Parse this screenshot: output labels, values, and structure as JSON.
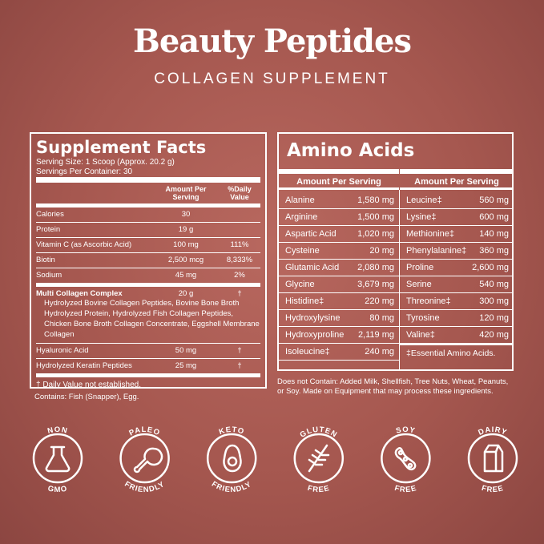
{
  "header": {
    "title": "Beauty Peptides",
    "subtitle": "COLLAGEN SUPPLEMENT"
  },
  "supplement_facts": {
    "title": "Supplement Facts",
    "serving_size": "Serving Size: 1 Scoop (Approx. 20.2 g)",
    "servings": "Servings Per Container: 30",
    "amount_header": "Amount Per Serving",
    "dv_header": "%Daily Value",
    "rows": [
      {
        "name": "Calories",
        "amount": "30"
      },
      {
        "name": "Protein",
        "amount": "19 g"
      },
      {
        "name": "Vitamin C (as Ascorbic Acid)",
        "amount": "100 mg",
        "dv": "111%"
      },
      {
        "name": "Biotin",
        "amount": "2,500 mcg",
        "dv": "8,333%"
      },
      {
        "name": "Sodium",
        "amount": "45 mg",
        "dv": "2%"
      },
      {
        "name": "Multi Collagen Complex",
        "amount": "20 g",
        "dv": "†",
        "description": "Hydrolyzed Bovine Collagen Peptides, Bovine Bone Broth Hydrolyzed Protein, Hydrolyzed Fish Collagen Peptides, Chicken Bone Broth Collagen Concentrate, Eggshell Membrane Collagen"
      },
      {
        "name": "Hyaluronic Acid",
        "amount": "50 mg",
        "dv": "†"
      },
      {
        "name": "Hydrolyzed Keratin Peptides",
        "amount": "25 mg",
        "dv": "†"
      }
    ],
    "footnote": "† Daily Value not established.",
    "contains": "Contains: Fish (Snapper), Egg."
  },
  "amino_acids": {
    "title": "Amino Acids",
    "headers": [
      "Amount Per Serving",
      "Amount Per Serving"
    ],
    "columns": [
      [
        [
          "Alanine",
          "1,580 mg"
        ],
        [
          "Arginine",
          "1,500 mg"
        ],
        [
          "Aspartic Acid",
          "1,020 mg"
        ],
        [
          "Cysteine",
          "20 mg"
        ],
        [
          "Glutamic Acid",
          "2,080 mg"
        ],
        [
          "Glycine",
          "3,679 mg"
        ],
        [
          "Histidine‡",
          "220 mg"
        ],
        [
          "Hydroxylysine",
          "80 mg"
        ],
        [
          "Hydroxyproline",
          "2,119 mg"
        ],
        [
          "Isoleucine‡",
          "240 mg"
        ]
      ],
      [
        [
          "Leucine‡",
          "560 mg"
        ],
        [
          "Lysine‡",
          "600 mg"
        ],
        [
          "Methionine‡",
          "140 mg"
        ],
        [
          "Phenylalanine‡",
          "360 mg"
        ],
        [
          "Proline",
          "2,600 mg"
        ],
        [
          "Serine",
          "540 mg"
        ],
        [
          "Threonine‡",
          "300 mg"
        ],
        [
          "Tyrosine",
          "120 mg"
        ],
        [
          "Valine‡",
          "420 mg"
        ]
      ]
    ],
    "footnote": "‡Essential Amino Acids.",
    "note": "Does not Contain: Added Milk, Shellfish, Tree Nuts, Wheat, Peanuts, or Soy. Made on Equipment that may process these ingredients."
  },
  "badges": [
    {
      "top": "NON",
      "bottom": "GMO"
    },
    {
      "top": "PALEO",
      "bottom": "FRIENDLY"
    },
    {
      "top": "KETO",
      "bottom": "FRIENDLY"
    },
    {
      "top": "GLUTEN",
      "bottom": "FREE"
    },
    {
      "top": "SOY",
      "bottom": "FREE"
    },
    {
      "top": "DAIRY",
      "bottom": "FREE"
    }
  ]
}
